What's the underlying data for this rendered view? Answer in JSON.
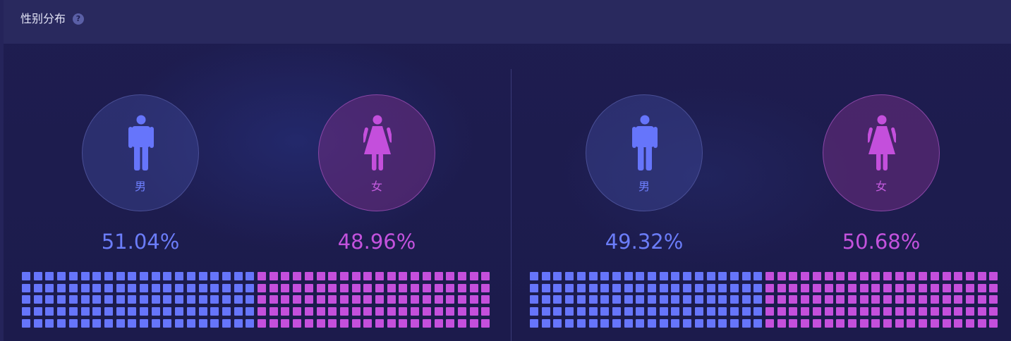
{
  "header": {
    "title": "性别分布",
    "help_icon": "?"
  },
  "colors": {
    "male": "#6675fb",
    "female": "#c44fdc"
  },
  "panels": [
    {
      "male": {
        "label": "男",
        "percent_text": "51.04%"
      },
      "female": {
        "label": "女",
        "percent_text": "48.96%"
      }
    },
    {
      "male": {
        "label": "男",
        "percent_text": "49.32%"
      },
      "female": {
        "label": "女",
        "percent_text": "50.68%"
      }
    }
  ],
  "chart_data": [
    {
      "type": "waffle",
      "categories": [
        "男",
        "女"
      ],
      "values": [
        51.04,
        48.96
      ],
      "cells": 200,
      "rows": 5
    },
    {
      "type": "waffle",
      "categories": [
        "男",
        "女"
      ],
      "values": [
        49.32,
        50.68
      ],
      "cells": 200,
      "rows": 5
    }
  ]
}
